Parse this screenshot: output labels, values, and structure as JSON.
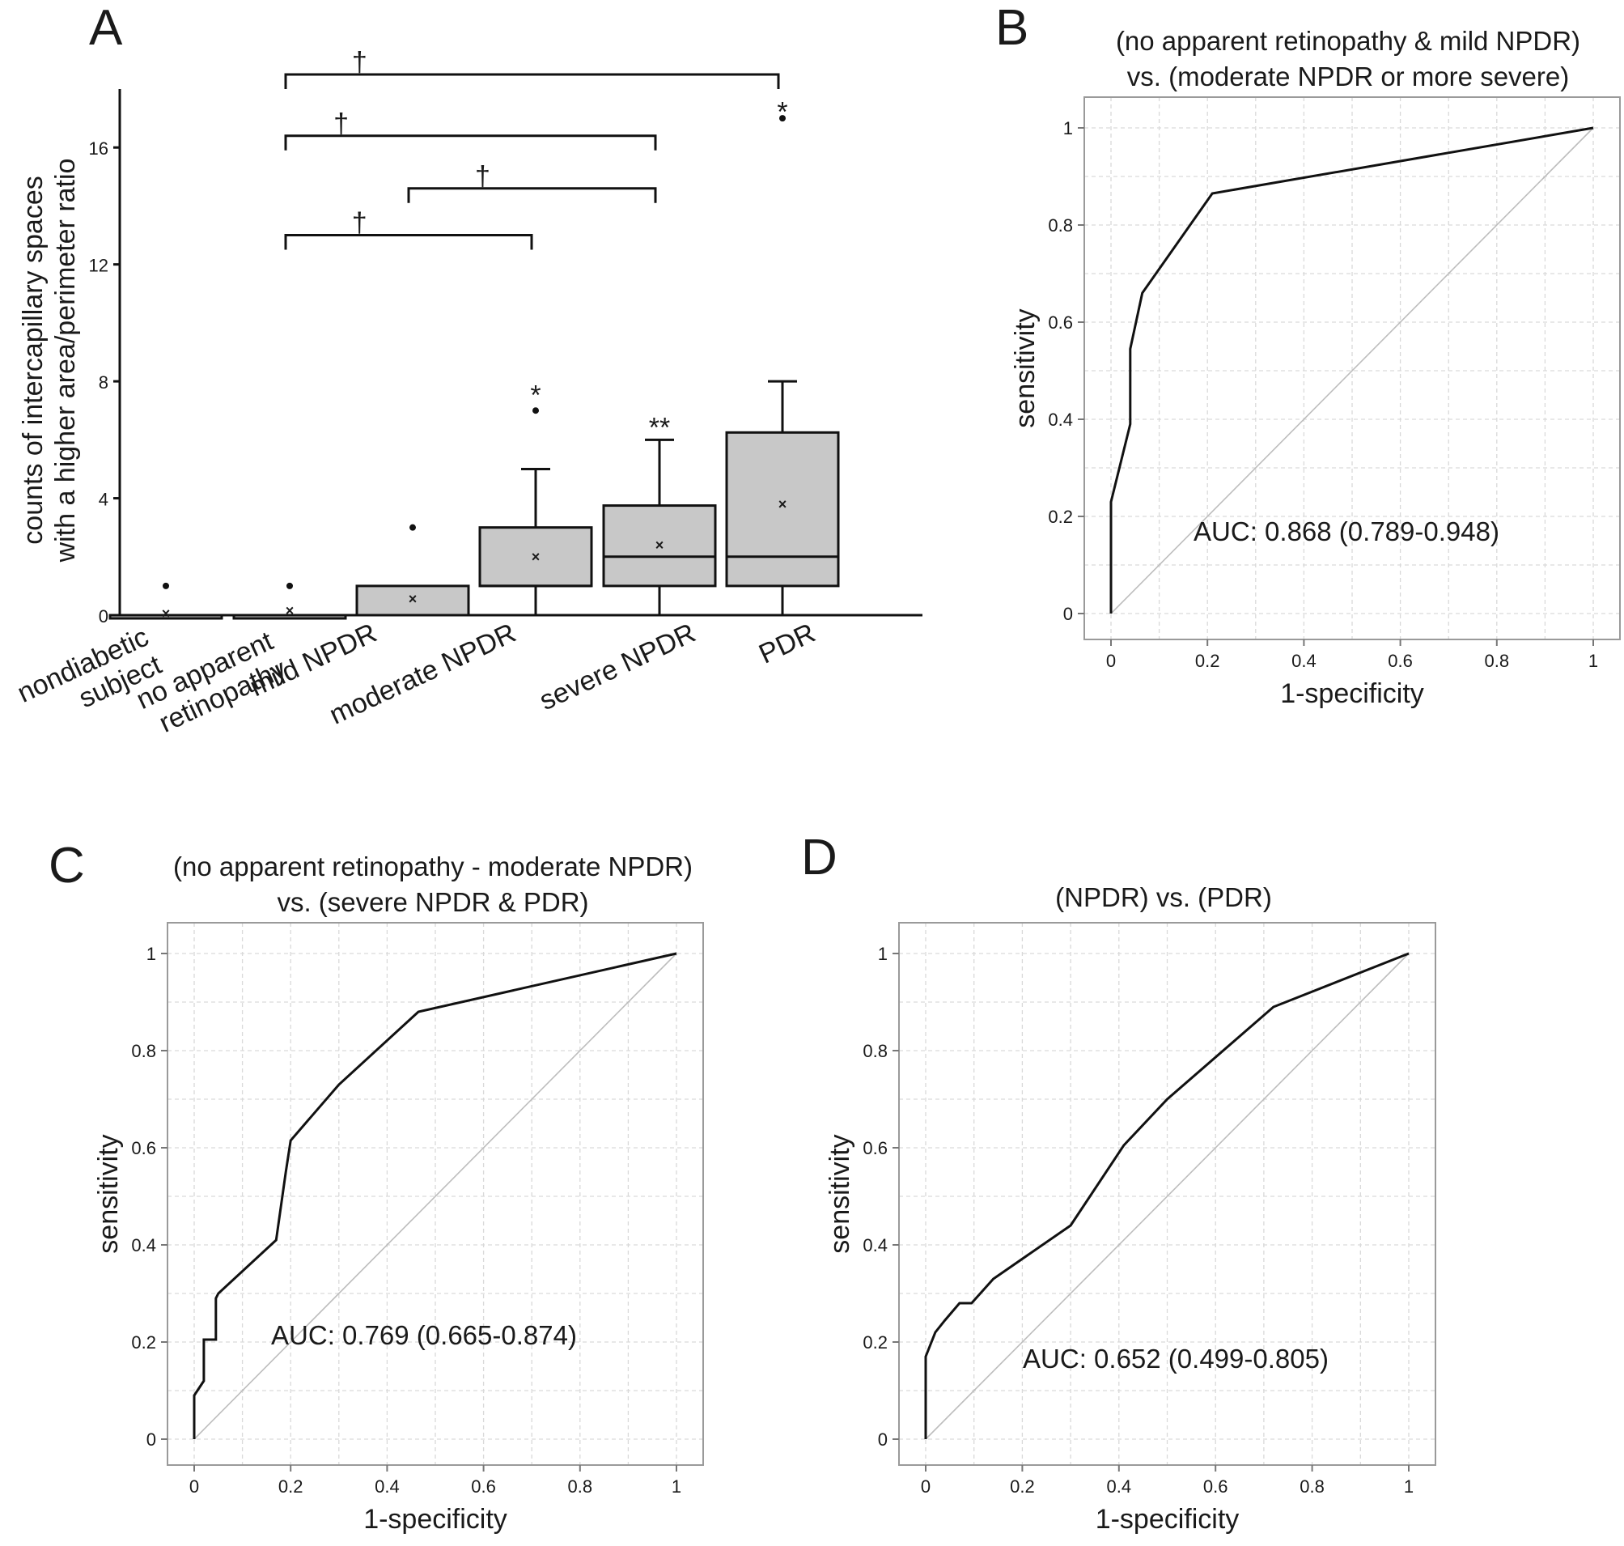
{
  "chart_data": [
    {
      "panel": "A",
      "type": "box",
      "ylabel_line1": "counts of intercapillary spaces",
      "ylabel_line2": "with a higher area/perimeter ratio",
      "ylim": [
        0,
        18
      ],
      "yticks": [
        0,
        4,
        8,
        12,
        16
      ],
      "categories": [
        "nondiabetic subject",
        "no apparent retinopathy",
        "mild NPDR",
        "moderate NPDR",
        "severe NPDR",
        "PDR"
      ],
      "category_lines": [
        [
          "nondiabetic",
          "subject"
        ],
        [
          "no apparent",
          "retinopathy"
        ],
        [
          "mild NPDR"
        ],
        [
          "moderate NPDR"
        ],
        [
          "severe NPDR"
        ],
        [
          "PDR"
        ]
      ],
      "boxes": [
        {
          "q1": 0,
          "median": 0,
          "q3": 0,
          "whisker_low": 0,
          "whisker_high": 0,
          "mean": 0.05,
          "outliers": [
            1
          ]
        },
        {
          "q1": 0,
          "median": 0,
          "q3": 0,
          "whisker_low": 0,
          "whisker_high": 0,
          "mean": 0.15,
          "outliers": [
            1
          ]
        },
        {
          "q1": 0,
          "median": 0,
          "q3": 1,
          "whisker_low": 0,
          "whisker_high": 1,
          "mean": 0.55,
          "outliers": [
            3
          ]
        },
        {
          "q1": 1,
          "median": 1,
          "q3": 3,
          "whisker_low": 0,
          "whisker_high": 5,
          "mean": 2.0,
          "outliers": [
            7
          ]
        },
        {
          "q1": 1,
          "median": 2,
          "q3": 3.75,
          "whisker_low": 0,
          "whisker_high": 6,
          "mean": 2.4,
          "outliers": []
        },
        {
          "q1": 1,
          "median": 2,
          "q3": 6.25,
          "whisker_low": 0,
          "whisker_high": 8,
          "mean": 3.8,
          "outliers": [
            17
          ]
        }
      ],
      "outlier_annotations": [
        {
          "category_index": 3,
          "text": "*",
          "y": 7.6
        },
        {
          "category_index": 4,
          "text": "**",
          "y": 6.5
        },
        {
          "category_index": 5,
          "text": "*",
          "y": 17.3
        }
      ],
      "comparisons": [
        {
          "from": 1,
          "to": 5,
          "level": 18.5,
          "symbol": "†"
        },
        {
          "from": 1,
          "to": 4,
          "level": 16.4,
          "symbol": "†"
        },
        {
          "from": 2,
          "to": 4,
          "level": 14.6,
          "symbol": "†"
        },
        {
          "from": 1,
          "to": 3,
          "level": 13.0,
          "symbol": "†"
        }
      ]
    },
    {
      "panel": "B",
      "type": "line",
      "title_line1": "(no apparent retinopathy & mild NPDR)",
      "title_line2": "vs. (moderate NPDR or more severe)",
      "xlabel": "1-specificity",
      "ylabel": "sensitivity",
      "xlim": [
        0,
        1
      ],
      "ylim": [
        0,
        1
      ],
      "ticks": [
        "0",
        "0.2",
        "0.4",
        "0.6",
        "0.8",
        "1"
      ],
      "auc_text": "AUC: 0.868 (0.789-0.948)",
      "x": [
        0,
        0,
        0.04,
        0.04,
        0.065,
        0.21,
        1
      ],
      "y": [
        0,
        0.23,
        0.39,
        0.545,
        0.66,
        0.865,
        1
      ]
    },
    {
      "panel": "C",
      "type": "line",
      "title_line1": "(no apparent retinopathy - moderate NPDR)",
      "title_line2": "vs. (severe NPDR & PDR)",
      "xlabel": "1-specificity",
      "ylabel": "sensitivity",
      "xlim": [
        0,
        1
      ],
      "ylim": [
        0,
        1
      ],
      "ticks": [
        "0",
        "0.2",
        "0.4",
        "0.6",
        "0.8",
        "1"
      ],
      "auc_text": "AUC: 0.769 (0.665-0.874)",
      "x": [
        0,
        0,
        0.02,
        0.02,
        0.045,
        0.045,
        0.05,
        0.17,
        0.19,
        0.2,
        0.3,
        0.465,
        1
      ],
      "y": [
        0,
        0.09,
        0.12,
        0.205,
        0.205,
        0.29,
        0.3,
        0.41,
        0.55,
        0.615,
        0.73,
        0.88,
        1
      ]
    },
    {
      "panel": "D",
      "type": "line",
      "title_line1": "(NPDR) vs. (PDR)",
      "title_line2": "",
      "xlabel": "1-specificity",
      "ylabel": "sensitivity",
      "xlim": [
        0,
        1
      ],
      "ylim": [
        0,
        1
      ],
      "ticks": [
        "0",
        "0.2",
        "0.4",
        "0.6",
        "0.8",
        "1"
      ],
      "auc_text": "AUC: 0.652 (0.499-0.805)",
      "x": [
        0,
        0,
        0.02,
        0.04,
        0.07,
        0.095,
        0.14,
        0.3,
        0.41,
        0.5,
        0.72,
        1
      ],
      "y": [
        0,
        0.17,
        0.22,
        0.245,
        0.28,
        0.28,
        0.33,
        0.44,
        0.605,
        0.7,
        0.89,
        1
      ]
    }
  ]
}
